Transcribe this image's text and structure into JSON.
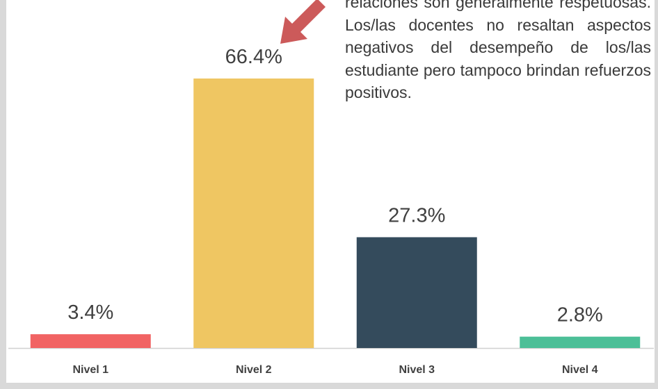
{
  "chart_data": {
    "type": "bar",
    "categories": [
      "Nivel 1",
      "Nivel 2",
      "Nivel 3",
      "Nivel 4"
    ],
    "values": [
      3.4,
      66.4,
      27.3,
      2.8
    ],
    "value_labels": [
      "3.4%",
      "66.4%",
      "27.3%",
      "2.8%"
    ],
    "colors": [
      "#f16363",
      "#efc662",
      "#344b5c",
      "#4cbf97"
    ],
    "annotation": "relaciones son generalmente respetuosas. Los/las docentes no resaltan aspectos negativos del desempeño de los/las estudiante pero tampoco brindan refuerzos positivos."
  }
}
